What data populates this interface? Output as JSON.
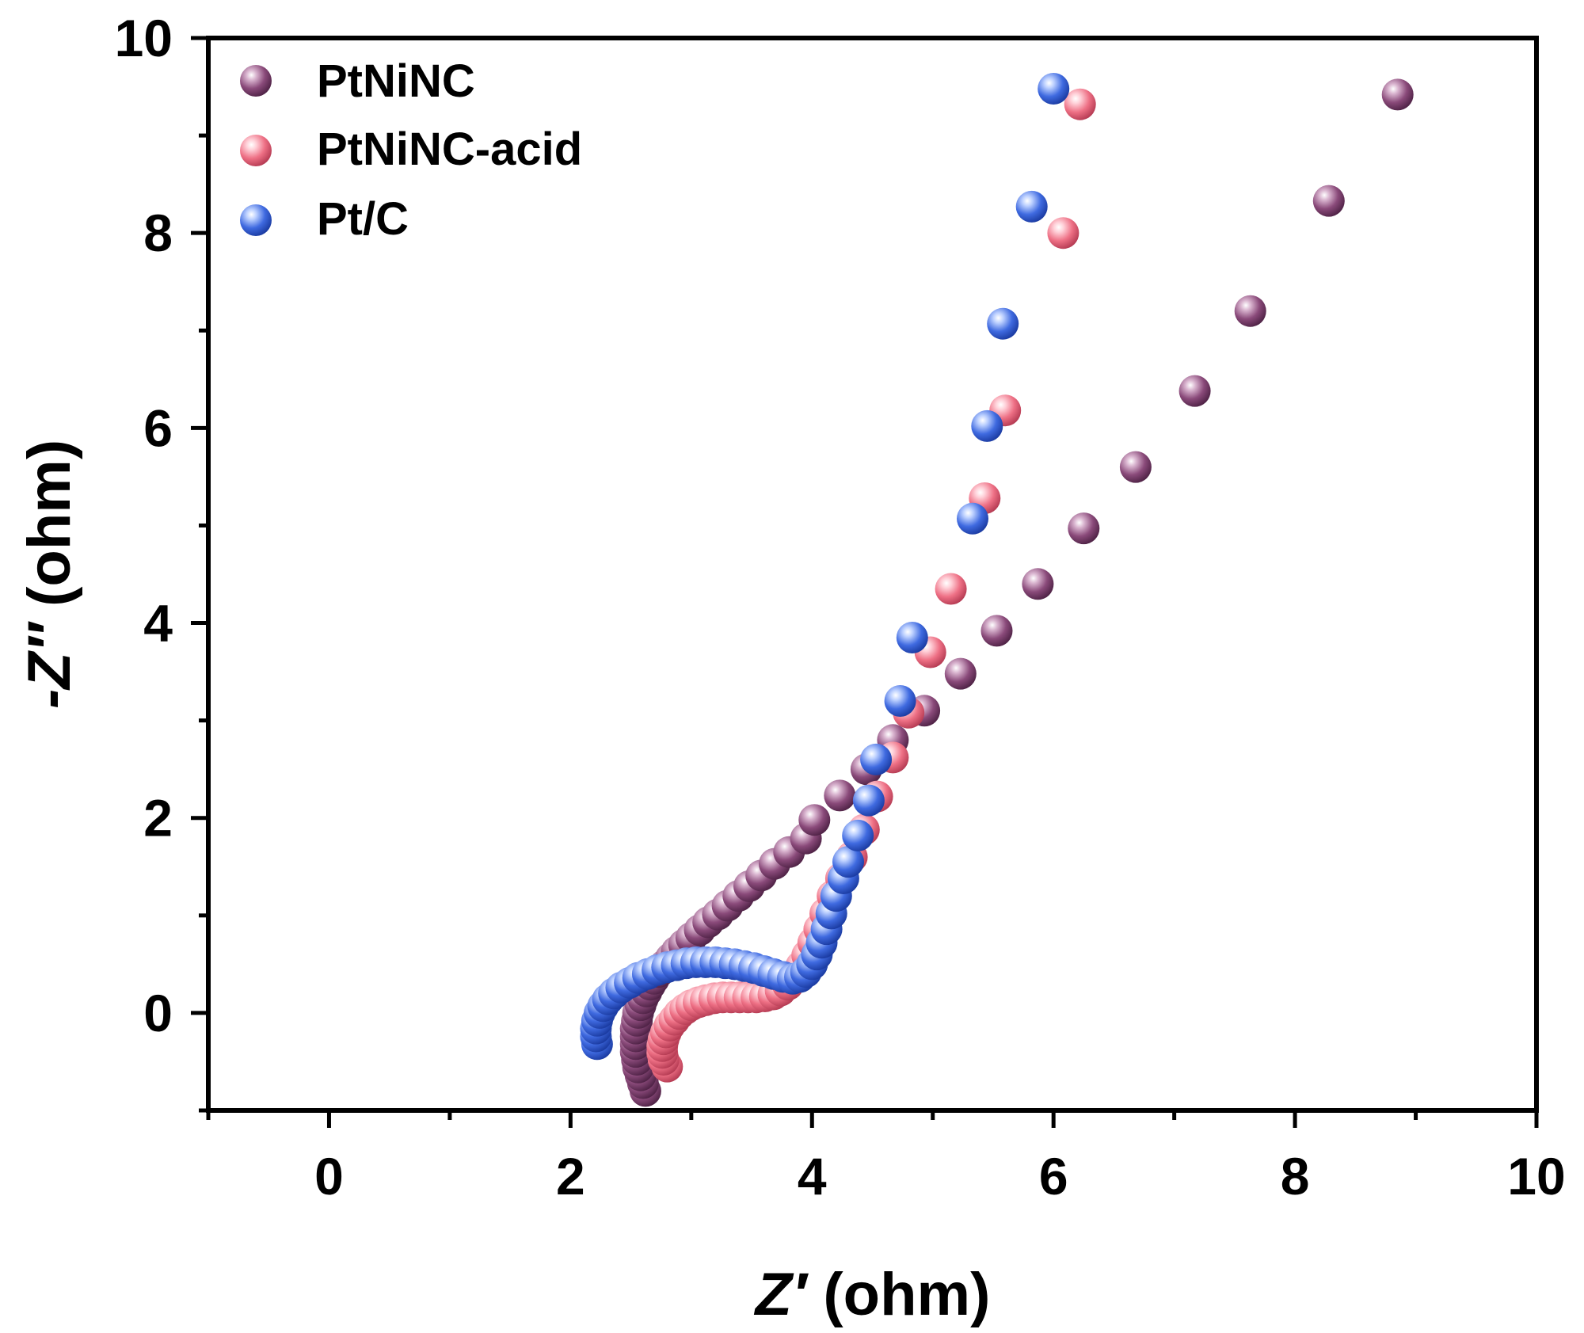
{
  "chart_data": {
    "type": "scatter",
    "xlabel": {
      "italic": "Z′",
      "rest": " (ohm)"
    },
    "ylabel": {
      "italic": "-Z″",
      "rest": " (ohm)"
    },
    "xlim": [
      -1,
      10
    ],
    "ylim": [
      -1,
      10
    ],
    "xticks": [
      0,
      2,
      4,
      6,
      8,
      10
    ],
    "yticks": [
      0,
      2,
      4,
      6,
      8,
      10
    ],
    "grid": false,
    "legend_position": "top-left",
    "series": [
      {
        "name": "PtNiNC",
        "color": "#8a4a7a",
        "points": [
          [
            2.62,
            -0.8
          ],
          [
            2.6,
            -0.72
          ],
          [
            2.58,
            -0.64
          ],
          [
            2.56,
            -0.56
          ],
          [
            2.55,
            -0.48
          ],
          [
            2.54,
            -0.4
          ],
          [
            2.54,
            -0.32
          ],
          [
            2.54,
            -0.24
          ],
          [
            2.54,
            -0.16
          ],
          [
            2.55,
            -0.08
          ],
          [
            2.56,
            0.0
          ],
          [
            2.58,
            0.08
          ],
          [
            2.6,
            0.15
          ],
          [
            2.63,
            0.22
          ],
          [
            2.66,
            0.29
          ],
          [
            2.69,
            0.35
          ],
          [
            2.73,
            0.42
          ],
          [
            2.78,
            0.49
          ],
          [
            2.83,
            0.56
          ],
          [
            2.88,
            0.63
          ],
          [
            2.94,
            0.7
          ],
          [
            3.0,
            0.77
          ],
          [
            3.07,
            0.85
          ],
          [
            3.14,
            0.93
          ],
          [
            3.22,
            1.01
          ],
          [
            3.3,
            1.1
          ],
          [
            3.39,
            1.2
          ],
          [
            3.48,
            1.3
          ],
          [
            3.58,
            1.41
          ],
          [
            3.69,
            1.53
          ],
          [
            3.81,
            1.65
          ],
          [
            3.95,
            1.79
          ],
          [
            4.02,
            1.98
          ],
          [
            4.23,
            2.23
          ],
          [
            4.45,
            2.5
          ],
          [
            4.67,
            2.8
          ],
          [
            4.93,
            3.1
          ],
          [
            5.23,
            3.48
          ],
          [
            5.53,
            3.92
          ],
          [
            5.87,
            4.4
          ],
          [
            6.25,
            4.97
          ],
          [
            6.68,
            5.6
          ],
          [
            7.17,
            6.38
          ],
          [
            7.63,
            7.2
          ],
          [
            8.28,
            8.33
          ],
          [
            8.85,
            9.42
          ]
        ]
      },
      {
        "name": "PtNiNC-acid",
        "color": "#ee7085",
        "points": [
          [
            2.8,
            -0.55
          ],
          [
            2.77,
            -0.48
          ],
          [
            2.76,
            -0.41
          ],
          [
            2.76,
            -0.34
          ],
          [
            2.77,
            -0.27
          ],
          [
            2.79,
            -0.2
          ],
          [
            2.82,
            -0.13
          ],
          [
            2.86,
            -0.07
          ],
          [
            2.9,
            -0.01
          ],
          [
            2.95,
            0.04
          ],
          [
            3.0,
            0.08
          ],
          [
            3.06,
            0.11
          ],
          [
            3.12,
            0.13
          ],
          [
            3.19,
            0.15
          ],
          [
            3.26,
            0.16
          ],
          [
            3.33,
            0.16
          ],
          [
            3.4,
            0.16
          ],
          [
            3.47,
            0.16
          ],
          [
            3.54,
            0.16
          ],
          [
            3.61,
            0.17
          ],
          [
            3.68,
            0.19
          ],
          [
            3.74,
            0.23
          ],
          [
            3.8,
            0.29
          ],
          [
            3.86,
            0.38
          ],
          [
            3.91,
            0.48
          ],
          [
            3.96,
            0.59
          ],
          [
            4.01,
            0.72
          ],
          [
            4.06,
            0.86
          ],
          [
            4.11,
            1.02
          ],
          [
            4.17,
            1.2
          ],
          [
            4.24,
            1.38
          ],
          [
            4.33,
            1.6
          ],
          [
            4.43,
            1.88
          ],
          [
            4.54,
            2.22
          ],
          [
            4.67,
            2.62
          ],
          [
            4.8,
            3.08
          ],
          [
            4.98,
            3.7
          ],
          [
            5.15,
            4.35
          ],
          [
            5.43,
            5.28
          ],
          [
            5.6,
            6.18
          ],
          [
            6.08,
            8.0
          ],
          [
            6.22,
            9.32
          ]
        ]
      },
      {
        "name": "Pt/C",
        "color": "#3f6ae0",
        "points": [
          [
            2.22,
            -0.32
          ],
          [
            2.21,
            -0.24
          ],
          [
            2.21,
            -0.16
          ],
          [
            2.22,
            -0.08
          ],
          [
            2.24,
            0.0
          ],
          [
            2.27,
            0.07
          ],
          [
            2.31,
            0.14
          ],
          [
            2.36,
            0.2
          ],
          [
            2.42,
            0.26
          ],
          [
            2.49,
            0.31
          ],
          [
            2.56,
            0.36
          ],
          [
            2.64,
            0.4
          ],
          [
            2.72,
            0.44
          ],
          [
            2.8,
            0.47
          ],
          [
            2.88,
            0.49
          ],
          [
            2.96,
            0.51
          ],
          [
            3.04,
            0.52
          ],
          [
            3.12,
            0.52
          ],
          [
            3.2,
            0.52
          ],
          [
            3.28,
            0.51
          ],
          [
            3.36,
            0.5
          ],
          [
            3.44,
            0.48
          ],
          [
            3.52,
            0.46
          ],
          [
            3.6,
            0.43
          ],
          [
            3.68,
            0.4
          ],
          [
            3.76,
            0.37
          ],
          [
            3.84,
            0.35
          ],
          [
            3.9,
            0.37
          ],
          [
            3.95,
            0.42
          ],
          [
            4.0,
            0.5
          ],
          [
            4.04,
            0.6
          ],
          [
            4.08,
            0.72
          ],
          [
            4.12,
            0.86
          ],
          [
            4.16,
            1.02
          ],
          [
            4.2,
            1.2
          ],
          [
            4.26,
            1.38
          ],
          [
            4.3,
            1.55
          ],
          [
            4.38,
            1.82
          ],
          [
            4.47,
            2.18
          ],
          [
            4.53,
            2.6
          ],
          [
            4.73,
            3.2
          ],
          [
            4.83,
            3.85
          ],
          [
            5.33,
            5.07
          ],
          [
            5.45,
            6.02
          ],
          [
            5.58,
            7.07
          ],
          [
            5.82,
            8.27
          ],
          [
            6.0,
            9.48
          ]
        ]
      }
    ]
  }
}
